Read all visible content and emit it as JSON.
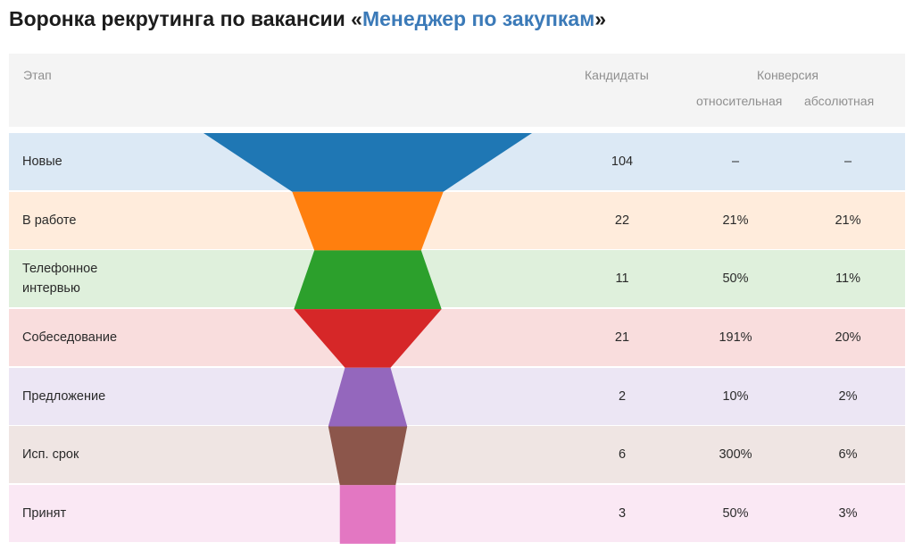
{
  "page": {
    "title_prefix": "Воронка рекрутинга по вакансии «",
    "title_link": "Менеджер по закупкам",
    "title_suffix": "»"
  },
  "table": {
    "headers": {
      "stage": "Этап",
      "candidates": "Кандидаты",
      "conversion": "Конверсия",
      "relative": "относительная",
      "absolute": "абсолютная"
    }
  },
  "chart_data": {
    "type": "funnel",
    "stages": [
      {
        "label": "Новые",
        "value": 104,
        "relative": "–",
        "absolute": "–",
        "color": "#1f77b4",
        "bg": "#dce9f5"
      },
      {
        "label": "В работе",
        "value": 22,
        "relative": "21%",
        "absolute": "21%",
        "color": "#ff7f0e",
        "bg": "#ffecdc"
      },
      {
        "label": "Телефонное интервью",
        "value": 11,
        "relative": "50%",
        "absolute": "11%",
        "color": "#2ca02c",
        "bg": "#dff0dc"
      },
      {
        "label": "Собеседование",
        "value": 21,
        "relative": "191%",
        "absolute": "20%",
        "color": "#d62728",
        "bg": "#f9dddd"
      },
      {
        "label": "Предложение",
        "value": 2,
        "relative": "10%",
        "absolute": "2%",
        "color": "#9467bd",
        "bg": "#ece6f4"
      },
      {
        "label": "Исп. срок",
        "value": 6,
        "relative": "300%",
        "absolute": "6%",
        "color": "#8c564b",
        "bg": "#efe5e3"
      },
      {
        "label": "Принят",
        "value": 3,
        "relative": "50%",
        "absolute": "3%",
        "color": "#e377c2",
        "bg": "#fae8f4"
      }
    ]
  }
}
